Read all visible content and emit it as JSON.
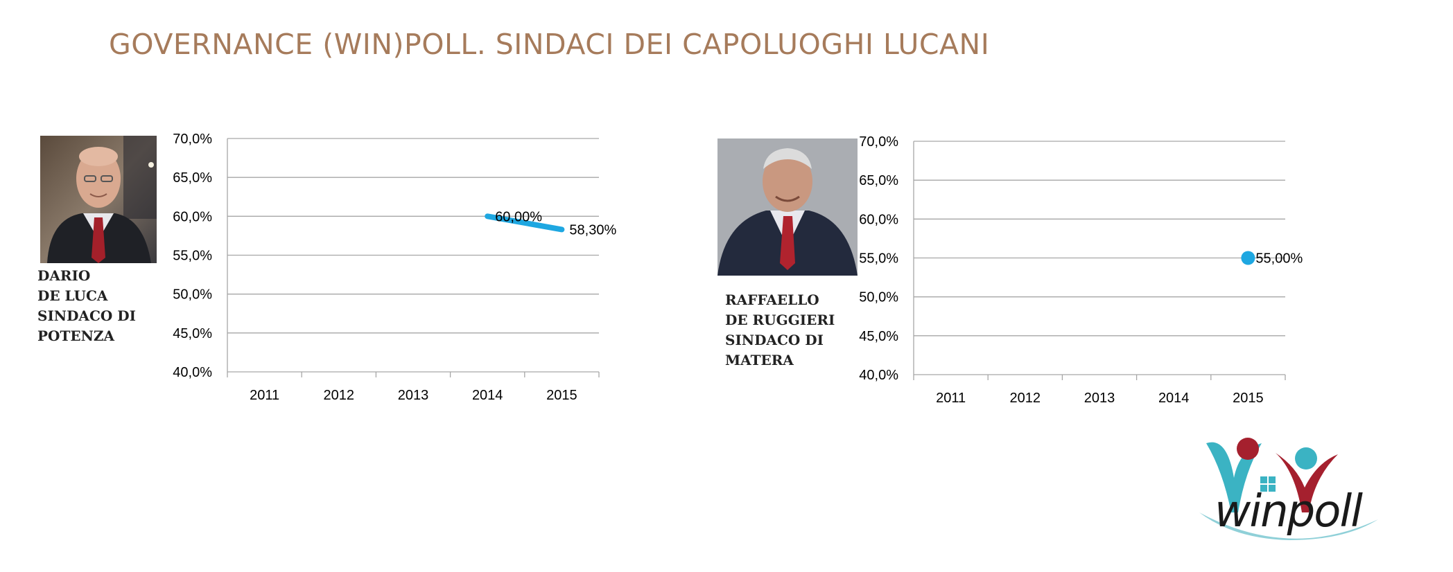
{
  "slide": {
    "title": "GOVERNANCE (WIN)POLL. SINDACI DEI CAPOLUOGHI LUCANI",
    "title_color": "#A67B5B"
  },
  "mayors": [
    {
      "caption_lines": [
        "DARIO",
        "DE LUCA",
        "SINDACO DI",
        "POTENZA"
      ]
    },
    {
      "caption_lines": [
        "RAFFAELLO",
        "DE RUGGIERI",
        "SINDACO DI",
        "MATERA"
      ]
    }
  ],
  "chart_data": [
    {
      "type": "line",
      "categories": [
        "2011",
        "2012",
        "2013",
        "2014",
        "2015"
      ],
      "series": [
        {
          "values": [
            null,
            null,
            null,
            60.0,
            58.3
          ],
          "labels": [
            "",
            "",
            "",
            "60,00%",
            "58,30%"
          ],
          "color": "#1EA7E1"
        }
      ],
      "ylim": [
        40,
        70
      ],
      "yticks": [
        "40,0%",
        "45,0%",
        "50,0%",
        "55,0%",
        "60,0%",
        "65,0%",
        "70,0%"
      ],
      "grid": true,
      "title": "",
      "xlabel": "",
      "ylabel": ""
    },
    {
      "type": "scatter",
      "categories": [
        "2011",
        "2012",
        "2013",
        "2014",
        "2015"
      ],
      "series": [
        {
          "values": [
            null,
            null,
            null,
            null,
            55.0
          ],
          "labels": [
            "",
            "",
            "",
            "",
            "55,00%"
          ],
          "color": "#1EA7E1"
        }
      ],
      "ylim": [
        40,
        70
      ],
      "yticks": [
        "40,0%",
        "45,0%",
        "50,0%",
        "55,0%",
        "60,0%",
        "65,0%",
        "70,0%"
      ],
      "grid": true,
      "title": "",
      "xlabel": "",
      "ylabel": ""
    }
  ],
  "logo": {
    "text": "winpoll",
    "colors": {
      "teal": "#3BB3C3",
      "red": "#A5202E",
      "dark": "#1A1A1A"
    }
  }
}
